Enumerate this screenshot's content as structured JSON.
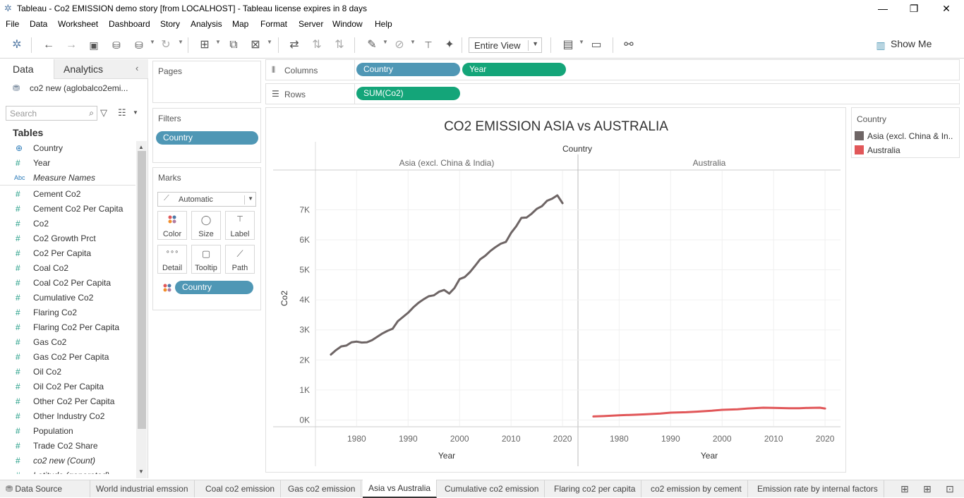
{
  "window": {
    "title": "Tableau - Co2 EMISSION demo story [from LOCALHOST] - Tableau license expires in 8 days",
    "minimize": "—",
    "restore": "❐",
    "close": "✕"
  },
  "menu": [
    "File",
    "Data",
    "Worksheet",
    "Dashboard",
    "Story",
    "Analysis",
    "Map",
    "Format",
    "Server",
    "Window",
    "Help"
  ],
  "toolbar": {
    "fit_value": "Entire View",
    "show_me_label": "Show Me"
  },
  "data_pane": {
    "tab_data": "Data",
    "tab_analytics": "Analytics",
    "datasource": "co2 new (aglobalco2emi...",
    "search_placeholder": "Search",
    "tables_heading": "Tables",
    "fields": [
      {
        "label": "Country",
        "type": "dim-geo"
      },
      {
        "label": "Year",
        "type": "measure"
      },
      {
        "label": "Measure Names",
        "type": "abc"
      },
      {
        "label": "Cement Co2",
        "type": "measure"
      },
      {
        "label": "Cement Co2 Per Capita",
        "type": "measure"
      },
      {
        "label": "Co2",
        "type": "measure"
      },
      {
        "label": "Co2 Growth Prct",
        "type": "measure"
      },
      {
        "label": "Co2 Per Capita",
        "type": "measure"
      },
      {
        "label": "Coal Co2",
        "type": "measure"
      },
      {
        "label": "Coal Co2 Per Capita",
        "type": "measure"
      },
      {
        "label": "Cumulative Co2",
        "type": "measure"
      },
      {
        "label": "Flaring Co2",
        "type": "measure"
      },
      {
        "label": "Flaring Co2 Per Capita",
        "type": "measure"
      },
      {
        "label": "Gas Co2",
        "type": "measure"
      },
      {
        "label": "Gas Co2 Per Capita",
        "type": "measure"
      },
      {
        "label": "Oil Co2",
        "type": "measure"
      },
      {
        "label": "Oil Co2 Per Capita",
        "type": "measure"
      },
      {
        "label": "Other Co2 Per Capita",
        "type": "measure"
      },
      {
        "label": "Other Industry Co2",
        "type": "measure"
      },
      {
        "label": "Population",
        "type": "measure"
      },
      {
        "label": "Trade Co2 Share",
        "type": "measure"
      },
      {
        "label": "co2 new (Count)",
        "type": "measure-italic"
      },
      {
        "label": "Latitude (generated)",
        "type": "measure-italic"
      }
    ]
  },
  "shelves": {
    "pages_label": "Pages",
    "filters_label": "Filters",
    "filter_pill": "Country",
    "marks_label": "Marks",
    "mark_type": "Automatic",
    "mark_buttons": [
      "Color",
      "Size",
      "Label",
      "Detail",
      "Tooltip",
      "Path"
    ],
    "color_pill": "Country",
    "columns_label": "Columns",
    "columns_pills": [
      "Country",
      "Year"
    ],
    "rows_label": "Rows",
    "rows_pills": [
      "SUM(Co2)"
    ]
  },
  "legend": {
    "title": "Country",
    "items": [
      {
        "label": "Asia (excl. China & In..",
        "color": "#6e6565"
      },
      {
        "label": "Australia",
        "color": "#e15759"
      }
    ]
  },
  "chart_data": {
    "type": "line",
    "title": "CO2 EMISSION ASIA vs AUSTRALIA",
    "column_header": "Country",
    "panes": [
      "Asia (excl. China & India)",
      "Australia"
    ],
    "xlabel": "Year",
    "ylabel": "Co2",
    "xlim": [
      1972,
      2023
    ],
    "ylim": [
      -200,
      8300
    ],
    "x_ticks": [
      1980,
      1990,
      2000,
      2010,
      2020
    ],
    "y_ticks": [
      0,
      1000,
      2000,
      3000,
      4000,
      5000,
      6000,
      7000
    ],
    "y_tick_labels": [
      "0K",
      "1K",
      "2K",
      "3K",
      "4K",
      "5K",
      "6K",
      "7K"
    ],
    "grid": true,
    "series": [
      {
        "color": "#6e6565",
        "pane": 0,
        "x": [
          1975,
          1976,
          1977,
          1978,
          1979,
          1980,
          1981,
          1982,
          1983,
          1984,
          1985,
          1986,
          1987,
          1988,
          1989,
          1990,
          1991,
          1992,
          1993,
          1994,
          1995,
          1996,
          1997,
          1998,
          1999,
          2000,
          2001,
          2002,
          2003,
          2004,
          2005,
          2006,
          2007,
          2008,
          2009,
          2010,
          2011,
          2012,
          2013,
          2014,
          2015,
          2016,
          2017,
          2018,
          2019,
          2020
        ],
        "values": [
          2180,
          2330,
          2450,
          2480,
          2590,
          2610,
          2580,
          2590,
          2660,
          2770,
          2880,
          2970,
          3040,
          3290,
          3430,
          3570,
          3750,
          3900,
          4020,
          4120,
          4150,
          4270,
          4330,
          4210,
          4390,
          4690,
          4760,
          4920,
          5130,
          5350,
          5470,
          5630,
          5760,
          5870,
          5930,
          6230,
          6450,
          6730,
          6740,
          6870,
          7030,
          7120,
          7300,
          7370,
          7480,
          7220
        ]
      },
      {
        "color": "#e15759",
        "pane": 1,
        "x": [
          1975,
          1977,
          1980,
          1983,
          1985,
          1988,
          1990,
          1993,
          1995,
          1998,
          2000,
          2003,
          2005,
          2008,
          2010,
          2013,
          2015,
          2017,
          2019,
          2020
        ],
        "values": [
          120,
          130,
          160,
          175,
          190,
          215,
          245,
          260,
          280,
          310,
          340,
          360,
          385,
          410,
          405,
          395,
          395,
          405,
          410,
          385
        ]
      }
    ]
  },
  "sheet_tabs": {
    "datasource": "Data Source",
    "tabs": [
      "World industrial emssion",
      "Coal co2 emission",
      "Gas co2 emission",
      "Asia vs Australia",
      "Cumulative co2 emission",
      "Flaring co2 per capita",
      "co2 emission by cement",
      "Emission rate by internal factors"
    ],
    "active": "Asia vs Australia"
  }
}
